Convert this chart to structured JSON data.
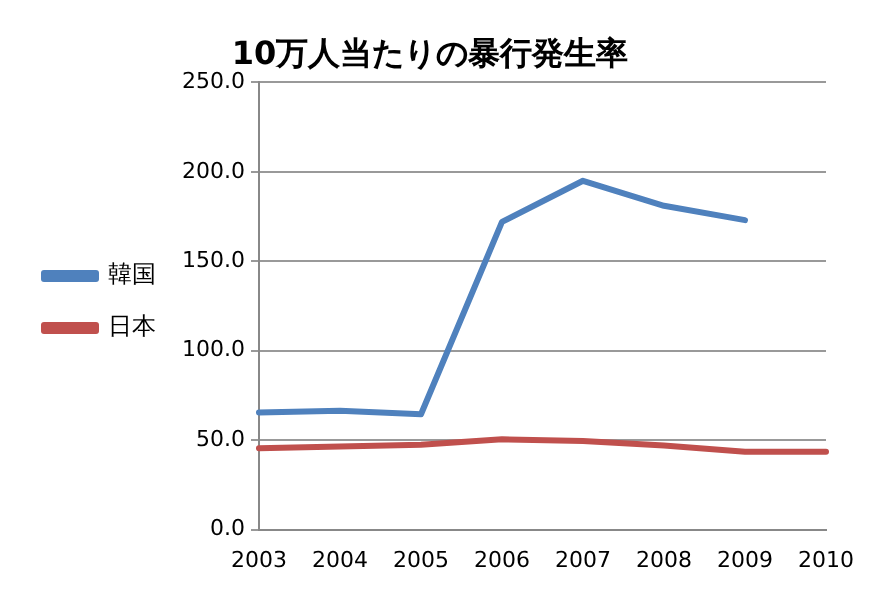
{
  "chart_data": {
    "type": "line",
    "title": "10万人当たりの暴行発生率",
    "categories": [
      "2003",
      "2004",
      "2005",
      "2006",
      "2007",
      "2008",
      "2009",
      "2010"
    ],
    "series": [
      {
        "name": "韓国",
        "color": "#4f81bd",
        "values": [
          65.5,
          66.5,
          64.5,
          172,
          195,
          181,
          173,
          null
        ]
      },
      {
        "name": "日本",
        "color": "#c0504d",
        "values": [
          45.5,
          46.5,
          47.5,
          50.5,
          49.5,
          47,
          43.5,
          43.5
        ]
      }
    ],
    "ylim": [
      0,
      250
    ],
    "yticks": [
      {
        "value": 0,
        "label": "0.0"
      },
      {
        "value": 50,
        "label": "50.0"
      },
      {
        "value": 100,
        "label": "100.0"
      },
      {
        "value": 150,
        "label": "150.0"
      },
      {
        "value": 200,
        "label": "200.0"
      },
      {
        "value": 250,
        "label": "250.0"
      }
    ],
    "grid": "y",
    "legend": "left",
    "marker": "none",
    "line_style": "solid"
  }
}
